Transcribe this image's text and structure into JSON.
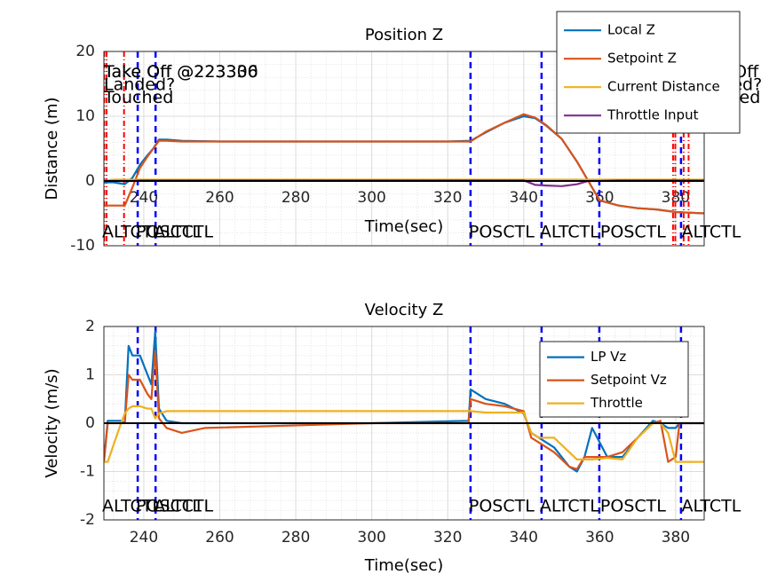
{
  "chart_data": [
    {
      "type": "line",
      "title": "Position Z",
      "xlabel": "Time(sec)",
      "ylabel": "Distance (m)",
      "xlim": [
        229.5,
        387.5
      ],
      "xticks": [
        240,
        260,
        280,
        300,
        320,
        340,
        360,
        380
      ],
      "ylim": [
        -10,
        20
      ],
      "yticks": [
        -10,
        0,
        10,
        20
      ],
      "grid": true,
      "minor_grid": true,
      "x_axis_location": "origin",
      "legend": "northeast-outside",
      "x": [
        229.5,
        232,
        235,
        237,
        239,
        241,
        242.5,
        244,
        246,
        250,
        260,
        280,
        300,
        320,
        326,
        330,
        335,
        340,
        343,
        346,
        350,
        354,
        357,
        360,
        365,
        370,
        375,
        380,
        387.5
      ],
      "series": [
        {
          "name": "Local Z",
          "color": "#0072bd",
          "values": [
            -0.2,
            -0.2,
            -0.5,
            0.5,
            2.5,
            4,
            5,
            6.4,
            6.4,
            6.2,
            6.1,
            6.1,
            6.1,
            6.1,
            6.2,
            7.5,
            9,
            10,
            9.7,
            8.5,
            6.5,
            3,
            0,
            -3,
            -3.8,
            -4.2,
            -4.4,
            -4.8,
            -5
          ]
        },
        {
          "name": "Setpoint Z",
          "color": "#d95319",
          "values": [
            -3.8,
            -3.8,
            -3.8,
            -1,
            2,
            3.8,
            5,
            6.2,
            6.2,
            6.1,
            6.1,
            6.1,
            6.1,
            6.1,
            6.1,
            7.6,
            9,
            10.3,
            9.8,
            8.6,
            6.5,
            3,
            0,
            -3,
            -3.8,
            -4.2,
            -4.4,
            -4.8,
            -5
          ]
        },
        {
          "name": "Current Distance",
          "color": "#edb120",
          "values": [
            0,
            0.2,
            0.2,
            0.2,
            0.2,
            0.2,
            0.2,
            0.2,
            0.2,
            0.2,
            0.2,
            0.2,
            0.2,
            0.2,
            0.2,
            0.2,
            0.2,
            0.2,
            0.2,
            0.2,
            0.2,
            0.2,
            0.2,
            0.2,
            0.2,
            0.2,
            0.2,
            0.2,
            0.2
          ]
        },
        {
          "name": "Throttle Input",
          "color": "#7e2f8e",
          "values": [
            0,
            0,
            0,
            0,
            0.1,
            0.1,
            0.1,
            0.1,
            0.1,
            0.1,
            0.1,
            0.1,
            0.1,
            0.1,
            0.1,
            0.1,
            0.1,
            0.1,
            -0.6,
            -0.7,
            -0.8,
            -0.5,
            0,
            0,
            0.1,
            0.1,
            0.1,
            0.1,
            0.1
          ]
        }
      ],
      "event_lines": [
        229.6,
        230.2,
        234.8,
        379.3,
        379.9,
        382.1,
        383.4
      ],
      "event_labels": [
        {
          "t": 229.5,
          "y": 16.8,
          "text": "Take Off @223306"
        },
        {
          "t": 229.5,
          "y": 16.8,
          "text": "Take Off @223330"
        },
        {
          "t": 229.5,
          "y": 14.8,
          "text": "Landed?"
        },
        {
          "t": 229.5,
          "y": 12.8,
          "text": "Touched"
        },
        {
          "t": 384,
          "y": 16.8,
          "text": "Take Off"
        },
        {
          "t": 384,
          "y": 14.8,
          "text": "Landed?"
        },
        {
          "t": 384,
          "y": 12.8,
          "text": "Touched"
        }
      ],
      "mode_changes": [
        238.4,
        243.1,
        326,
        344.7,
        359.9,
        381.4
      ],
      "mode_labels": [
        {
          "t": 229.5,
          "text": "ALTCTL"
        },
        {
          "t": 238.4,
          "text": "POSCTL"
        },
        {
          "t": 243.1,
          "text": "ALTCTL"
        },
        {
          "t": 326,
          "text": "POSCTL"
        },
        {
          "t": 344.7,
          "text": "ALTCTL"
        },
        {
          "t": 360.6,
          "text": "POSCTL"
        },
        {
          "t": 382,
          "text": "ALTCTL"
        }
      ]
    },
    {
      "type": "line",
      "title": "Velocity Z",
      "xlabel": "Time(sec)",
      "ylabel": "Velocity (m/s)",
      "xlim": [
        229.5,
        387.5
      ],
      "xticks": [
        240,
        260,
        280,
        300,
        320,
        340,
        360,
        380
      ],
      "ylim": [
        -2,
        2
      ],
      "yticks": [
        -2,
        -1,
        0,
        1,
        2
      ],
      "grid": true,
      "minor_grid": true,
      "x_axis_location": "bottom",
      "legend": "northeast",
      "x": [
        229.5,
        230.5,
        234,
        235,
        236,
        237,
        239,
        241,
        242,
        243,
        244,
        246,
        250,
        256,
        300,
        325.5,
        326,
        330,
        335,
        340,
        342,
        344,
        348,
        352,
        354,
        356,
        358,
        362,
        366,
        370,
        374,
        376,
        378,
        380,
        381,
        387.5
      ],
      "series": [
        {
          "name": "LP Vz",
          "color": "#0072bd",
          "values": [
            -0.8,
            0.05,
            0.05,
            0,
            1.6,
            1.4,
            1.4,
            1,
            0.8,
            1.9,
            0.3,
            0.05,
            0,
            0,
            0,
            0.05,
            0.7,
            0.5,
            0.4,
            0.2,
            -0.2,
            -0.3,
            -0.5,
            -0.9,
            -1,
            -0.7,
            -0.1,
            -0.7,
            -0.7,
            -0.3,
            0.05,
            0,
            -0.1,
            -0.1,
            0,
            0
          ]
        },
        {
          "name": "Setpoint Vz",
          "color": "#d95319",
          "values": [
            -0.8,
            0,
            0,
            0,
            1,
            0.9,
            0.9,
            0.6,
            0.5,
            1.5,
            0.1,
            -0.1,
            -0.2,
            -0.1,
            0,
            0,
            0.5,
            0.4,
            0.35,
            0.25,
            -0.3,
            -0.4,
            -0.6,
            -0.9,
            -0.95,
            -0.7,
            -0.7,
            -0.7,
            -0.6,
            -0.3,
            0,
            0.05,
            -0.8,
            -0.7,
            0,
            0
          ]
        },
        {
          "name": "Throttle",
          "color": "#edb120",
          "values": [
            -0.8,
            -0.8,
            0,
            0.2,
            0.3,
            0.35,
            0.35,
            0.3,
            0.3,
            0.1,
            0.2,
            0.25,
            0.25,
            0.25,
            0.25,
            0.25,
            0.25,
            0.22,
            0.22,
            0.22,
            -0.2,
            -0.3,
            -0.3,
            -0.6,
            -0.75,
            -0.75,
            -0.75,
            -0.72,
            -0.75,
            -0.3,
            0,
            0,
            -0.2,
            -0.8,
            -0.8,
            -0.8
          ]
        }
      ],
      "mode_changes": [
        238.4,
        243.1,
        326,
        344.7,
        359.9,
        381.4
      ],
      "mode_labels": [
        {
          "t": 229.5,
          "text": "ALTCTL"
        },
        {
          "t": 238.4,
          "text": "POSCTL"
        },
        {
          "t": 243.1,
          "text": "ALTCTL"
        },
        {
          "t": 326,
          "text": "POSCTL"
        },
        {
          "t": 344.7,
          "text": "ALTCTL"
        },
        {
          "t": 360.6,
          "text": "POSCTL"
        },
        {
          "t": 382,
          "text": "ALTCTL"
        }
      ]
    }
  ]
}
